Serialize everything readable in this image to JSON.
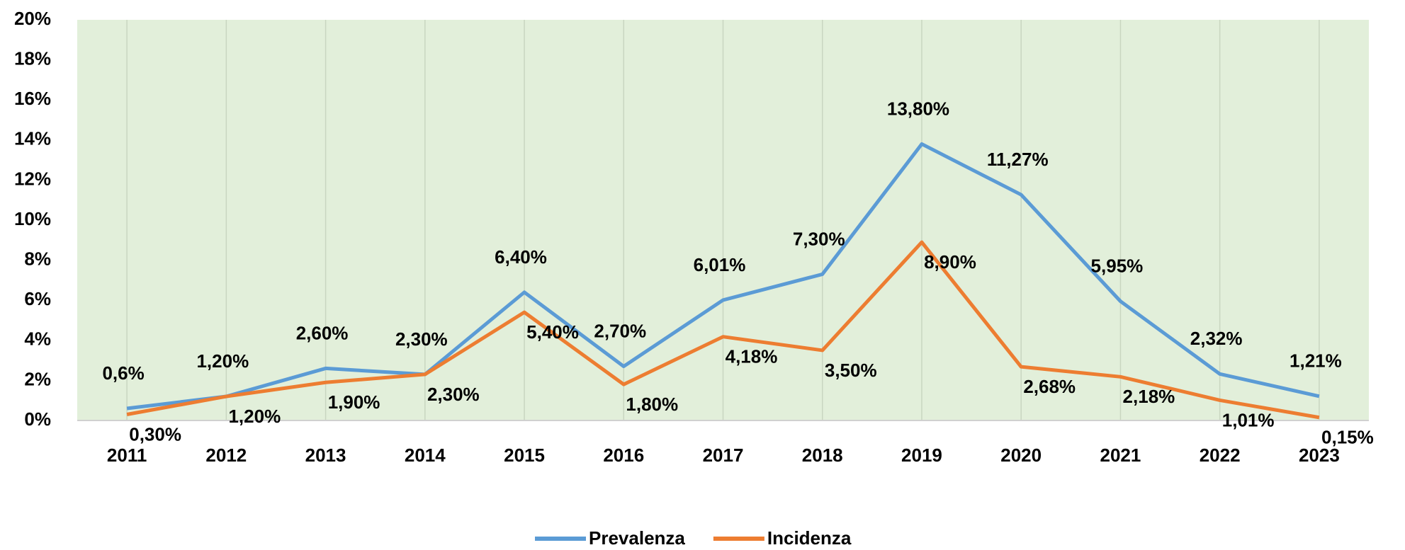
{
  "chart_data": {
    "type": "line",
    "categories": [
      "2011",
      "2012",
      "2013",
      "2014",
      "2015",
      "2016",
      "2017",
      "2018",
      "2019",
      "2020",
      "2021",
      "2022",
      "2023"
    ],
    "series": [
      {
        "name": "Prevalenza",
        "color": "#5b9bd5",
        "values": [
          0.6,
          1.2,
          2.6,
          2.3,
          6.4,
          2.7,
          6.01,
          7.3,
          13.8,
          11.27,
          5.95,
          2.32,
          1.21
        ],
        "value_labels": [
          "0,6%",
          "1,20%",
          "2,60%",
          "2,30%",
          "6,40%",
          "2,70%",
          "6,01%",
          "7,30%",
          "13,80%",
          "11,27%",
          "5,95%",
          "2,32%",
          "1,21%"
        ]
      },
      {
        "name": "Incidenza",
        "color": "#ed7d31",
        "values": [
          0.3,
          1.2,
          1.9,
          2.3,
          5.4,
          1.8,
          4.18,
          3.5,
          8.9,
          2.68,
          2.18,
          1.01,
          0.15
        ],
        "value_labels": [
          "0,30%",
          "1,20%",
          "1,90%",
          "2,30%",
          "5,40%",
          "1,80%",
          "4,18%",
          "3,50%",
          "8,90%",
          "2,68%",
          "2,18%",
          "1,01%",
          "0,15%"
        ]
      }
    ],
    "ylim": [
      0,
      20
    ],
    "yticks": [
      {
        "value": 0,
        "label": "0%"
      },
      {
        "value": 2,
        "label": "2%"
      },
      {
        "value": 4,
        "label": "4%"
      },
      {
        "value": 6,
        "label": "6%"
      },
      {
        "value": 8,
        "label": "8%"
      },
      {
        "value": 10,
        "label": "10%"
      },
      {
        "value": 12,
        "label": "12%"
      },
      {
        "value": 14,
        "label": "14%"
      },
      {
        "value": 16,
        "label": "16%"
      },
      {
        "value": 18,
        "label": "18%"
      },
      {
        "value": 20,
        "label": "20%"
      }
    ],
    "legend": "bottom",
    "plot_background": "#e2efda"
  }
}
